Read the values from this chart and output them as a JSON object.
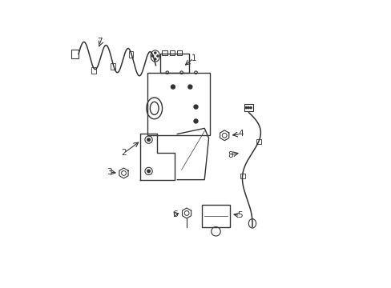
{
  "background_color": "#ffffff",
  "line_color": "#333333",
  "figsize": [
    4.89,
    3.6
  ],
  "dpi": 100
}
